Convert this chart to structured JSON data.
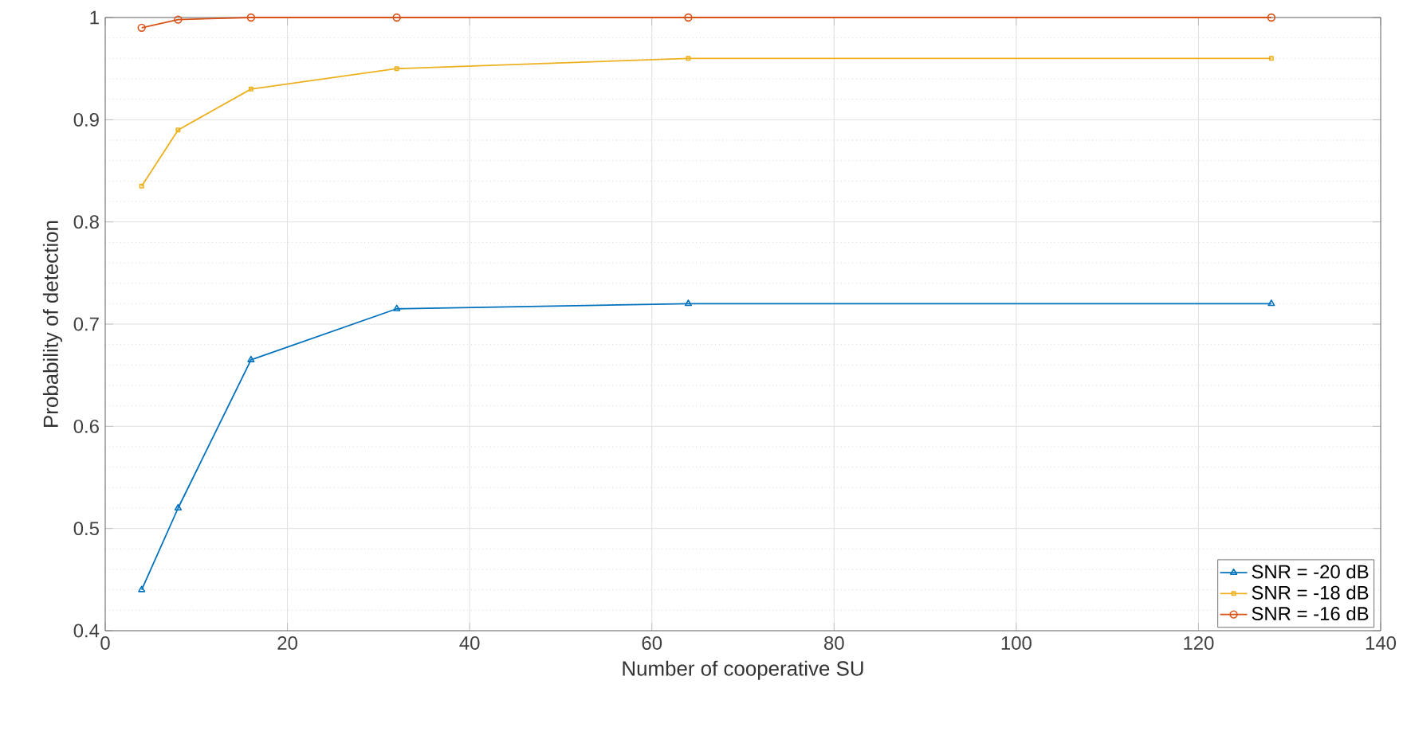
{
  "chart_data": {
    "type": "line",
    "xlabel": "Number of cooperative SU",
    "ylabel": "Probability of detection",
    "x": [
      4,
      8,
      16,
      32,
      64,
      128
    ],
    "series": [
      {
        "name": "SNR = -20 dB",
        "color": "#0072bd",
        "marker": "triangle",
        "values": [
          0.44,
          0.52,
          0.665,
          0.715,
          0.72,
          0.72
        ]
      },
      {
        "name": "SNR = -18 dB",
        "color": "#edb120",
        "marker": "square",
        "values": [
          0.835,
          0.89,
          0.93,
          0.95,
          0.96,
          0.96
        ]
      },
      {
        "name": "SNR = -16 dB",
        "color": "#d95319",
        "marker": "circle",
        "values": [
          0.99,
          0.998,
          1.0,
          1.0,
          1.0,
          1.0
        ]
      }
    ],
    "xlim": [
      0,
      140
    ],
    "xticks": [
      0,
      20,
      40,
      60,
      80,
      100,
      120,
      140
    ],
    "ylim": [
      0.4,
      1
    ],
    "yticks": [
      0.4,
      0.5,
      0.6,
      0.7,
      0.8,
      0.9,
      1
    ],
    "grid": true,
    "legend": "bottom right",
    "line_style": "solid"
  }
}
